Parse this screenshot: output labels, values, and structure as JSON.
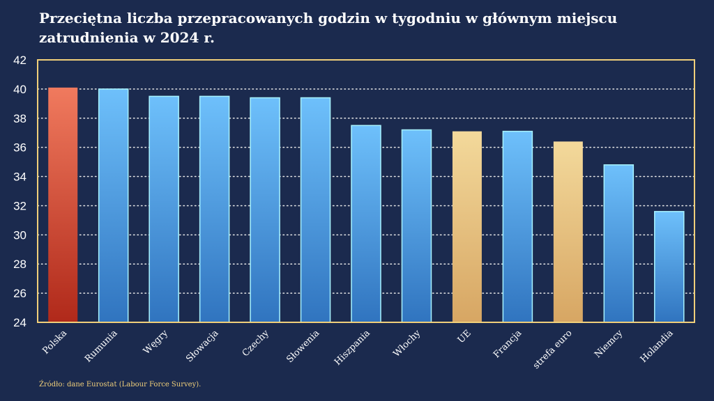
{
  "title": "Przeciętna liczba przepracowanych godzin w tygodniu w głównym miejscu zatrudnienia w 2024 r.",
  "source": "Źródło: dane Eurostat (Labour Force Survey).",
  "colors": {
    "background": "#1b2a4e",
    "frame": "#f0cf7a",
    "grid": "#e8e8e8",
    "highlight_top": "#f07a5e",
    "highlight_bottom": "#b0291a",
    "blue_top": "#6ec0fb",
    "blue_bottom": "#3074bf",
    "blue_edge": "#a8f3ff",
    "gold_top": "#f3d99b",
    "gold_bottom": "#d7a663"
  },
  "chart_data": {
    "type": "bar",
    "title": "Przeciętna liczba przepracowanych godzin w tygodniu w głównym miejscu zatrudnienia w 2024 r.",
    "xlabel": "",
    "ylabel": "",
    "ylim": [
      24,
      42
    ],
    "yticks": [
      24,
      26,
      28,
      30,
      32,
      34,
      36,
      38,
      40,
      42
    ],
    "grid": true,
    "categories": [
      "Polska",
      "Rumunia",
      "Węgry",
      "Słowacja",
      "Czechy",
      "Słowenia",
      "Hiszpania",
      "Włochy",
      "UE",
      "Francja",
      "strefa euro",
      "Niemcy",
      "Holandia"
    ],
    "values": [
      40.1,
      40.0,
      39.5,
      39.5,
      39.4,
      39.4,
      37.5,
      37.2,
      37.1,
      37.1,
      36.4,
      34.8,
      31.6
    ],
    "bar_groups": [
      "highlight",
      "country",
      "country",
      "country",
      "country",
      "country",
      "country",
      "country",
      "aggregate",
      "country",
      "aggregate",
      "country",
      "country"
    ]
  }
}
